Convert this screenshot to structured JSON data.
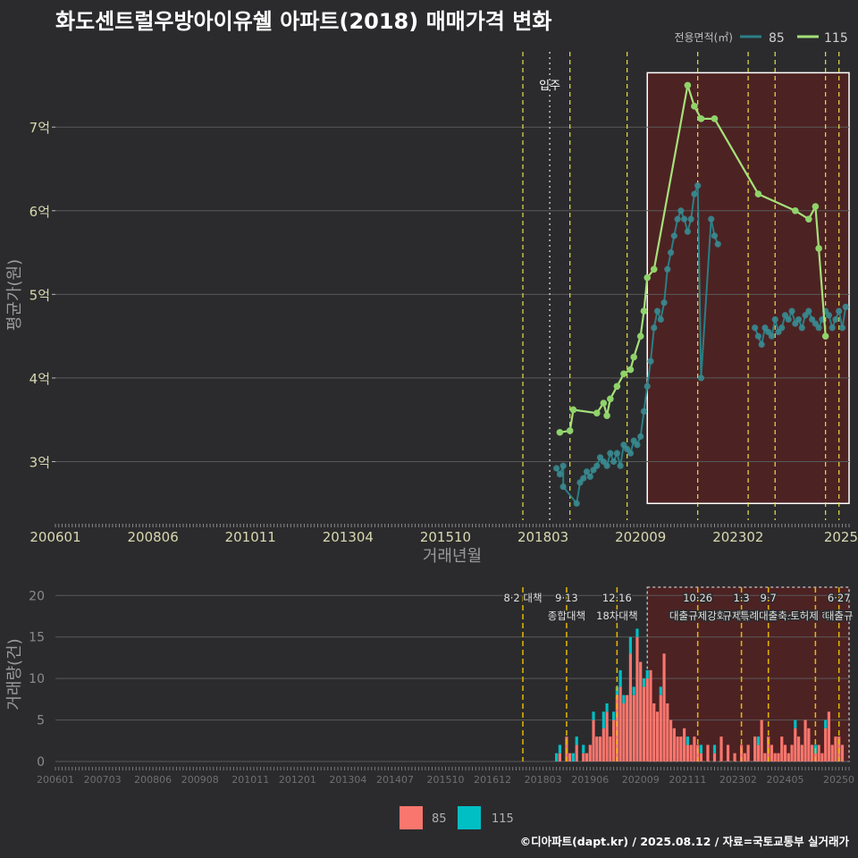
{
  "page": {
    "title": "화도센트럴우방아이유쉘 아파트(2018) 매매가격 변화",
    "footer": "©디아파트(dapt.kr) / 2025.08.12 / 자료=국토교통부 실거래가"
  },
  "colors": {
    "background": "#2b2b2d",
    "grid": "#5a5a5a",
    "series_85_line": "#2a7f86",
    "series_85_point": "#3a8a90",
    "series_115_line": "#a6e07a",
    "series_115_point": "#8fd36a",
    "bar_85": "#f8766d",
    "bar_115": "#00bfc4",
    "policy_line": "#e6b800",
    "highlight_fill": "#5a2020",
    "tick_text": "#d8d8b0"
  },
  "chart_data": [
    {
      "type": "line",
      "title": "평균 매매가격 (전용면적별)",
      "xlabel": "거래년월",
      "ylabel": "평균가(원)",
      "x_unit": "months since 2006-01",
      "xlim": [
        0,
        236
      ],
      "ylim": [
        2.3,
        7.9
      ],
      "y_ticks": [
        3,
        4,
        5,
        6,
        7
      ],
      "y_tick_labels": [
        "3억",
        "4억",
        "5억",
        "6억",
        "7억"
      ],
      "x_ticks": [
        0,
        29,
        58,
        87,
        116,
        145,
        174,
        203,
        232
      ],
      "x_tick_labels": [
        "200601",
        "200806",
        "201011",
        "201304",
        "201510",
        "201803",
        "202009",
        "202302",
        "2025"
      ],
      "legend_title": "전용면적(㎡)",
      "legend_position": "top-right",
      "annotation": {
        "label": "입주",
        "x": 147
      },
      "policy_lines_x": [
        139,
        153,
        170,
        191,
        206,
        214,
        229,
        233
      ],
      "highlight_range": {
        "x": [
          176,
          236
        ],
        "y": [
          2.5,
          7.65
        ]
      },
      "series": [
        {
          "name": "85",
          "points": [
            [
              149,
              2.92
            ],
            [
              150,
              2.85
            ],
            [
              151,
              2.95
            ],
            [
              151,
              2.7
            ],
            [
              155,
              2.5
            ],
            [
              156,
              2.75
            ],
            [
              157,
              2.8
            ],
            [
              158,
              2.88
            ],
            [
              159,
              2.82
            ],
            [
              160,
              2.9
            ],
            [
              161,
              2.95
            ],
            [
              162,
              3.05
            ],
            [
              163,
              3.0
            ],
            [
              164,
              2.95
            ],
            [
              165,
              3.1
            ],
            [
              166,
              3.0
            ],
            [
              167,
              3.1
            ],
            [
              168,
              2.95
            ],
            [
              169,
              3.2
            ],
            [
              170,
              3.15
            ],
            [
              171,
              3.1
            ],
            [
              172,
              3.25
            ],
            [
              173,
              3.2
            ],
            [
              174,
              3.3
            ],
            [
              175,
              3.6
            ],
            [
              176,
              3.9
            ],
            [
              177,
              4.2
            ],
            [
              178,
              4.6
            ],
            [
              179,
              4.8
            ],
            [
              180,
              4.7
            ],
            [
              181,
              4.9
            ],
            [
              182,
              5.3
            ],
            [
              183,
              5.5
            ],
            [
              184,
              5.7
            ],
            [
              185,
              5.9
            ],
            [
              186,
              6.0
            ],
            [
              187,
              5.9
            ],
            [
              188,
              5.75
            ],
            [
              189,
              5.9
            ],
            [
              190,
              6.2
            ],
            [
              191,
              6.3
            ],
            [
              192,
              4.0
            ],
            [
              195,
              5.9
            ],
            [
              196,
              5.7
            ],
            [
              197,
              5.6
            ],
            [
              208,
              4.6
            ],
            [
              209,
              4.5
            ],
            [
              210,
              4.4
            ],
            [
              211,
              4.6
            ],
            [
              212,
              4.55
            ],
            [
              213,
              4.5
            ],
            [
              214,
              4.7
            ],
            [
              215,
              4.55
            ],
            [
              216,
              4.6
            ],
            [
              217,
              4.75
            ],
            [
              218,
              4.7
            ],
            [
              219,
              4.8
            ],
            [
              220,
              4.65
            ],
            [
              221,
              4.7
            ],
            [
              222,
              4.6
            ],
            [
              223,
              4.75
            ],
            [
              224,
              4.8
            ],
            [
              225,
              4.7
            ],
            [
              226,
              4.65
            ],
            [
              227,
              4.6
            ],
            [
              228,
              4.7
            ],
            [
              229,
              4.8
            ],
            [
              230,
              4.75
            ],
            [
              231,
              4.6
            ],
            [
              232,
              4.7
            ],
            [
              233,
              4.8
            ],
            [
              234,
              4.6
            ],
            [
              235,
              4.85
            ]
          ]
        },
        {
          "name": "115",
          "points": [
            [
              150,
              3.35
            ],
            [
              153,
              3.37
            ],
            [
              154,
              3.62
            ],
            [
              161,
              3.58
            ],
            [
              163,
              3.7
            ],
            [
              164,
              3.55
            ],
            [
              165,
              3.75
            ],
            [
              167,
              3.9
            ],
            [
              169,
              4.05
            ],
            [
              171,
              4.1
            ],
            [
              172,
              4.25
            ],
            [
              174,
              4.5
            ],
            [
              175,
              4.8
            ],
            [
              176,
              5.2
            ],
            [
              178,
              5.3
            ],
            [
              188,
              7.5
            ],
            [
              190,
              7.25
            ],
            [
              192,
              7.1
            ],
            [
              196,
              7.1
            ],
            [
              209,
              6.2
            ],
            [
              220,
              6.0
            ],
            [
              224,
              5.9
            ],
            [
              226,
              6.05
            ],
            [
              227,
              5.55
            ],
            [
              229,
              4.5
            ]
          ]
        }
      ]
    },
    {
      "type": "bar",
      "title": "거래량",
      "ylabel": "거래량(건)",
      "x_unit": "months since 2006-01",
      "xlim": [
        0,
        236
      ],
      "ylim": [
        0,
        21
      ],
      "y_ticks": [
        0,
        5,
        10,
        15,
        20
      ],
      "y_tick_labels": [
        "0",
        "5",
        "10",
        "15",
        "20"
      ],
      "x_ticks": [
        0,
        14,
        29,
        43,
        58,
        72,
        87,
        101,
        116,
        130,
        145,
        159,
        174,
        188,
        203,
        217,
        232
      ],
      "x_tick_labels": [
        "200601",
        "200703",
        "200806",
        "200908",
        "201011",
        "201201",
        "201304",
        "201407",
        "201510",
        "201612",
        "201803",
        "201906",
        "202009",
        "202111",
        "202302",
        "202405",
        "20250"
      ],
      "stacked": true,
      "policy_lines": [
        {
          "x": 139,
          "lines": [
            "8·2 대책"
          ]
        },
        {
          "x": 152,
          "lines": [
            "9·13",
            "종합대책"
          ]
        },
        {
          "x": 167,
          "lines": [
            "12·16",
            "18차대책"
          ]
        },
        {
          "x": 191,
          "lines": [
            "10·26",
            "대출규제강화"
          ]
        },
        {
          "x": 204,
          "lines": [
            "1·3",
            "규제완화"
          ]
        },
        {
          "x": 212,
          "lines": [
            "9·7",
            "특례대출축소"
          ]
        },
        {
          "x": 226,
          "lines": [
            "",
            "토허제 해제"
          ]
        },
        {
          "x": 233,
          "lines": [
            "6·27",
            "대출규"
          ]
        }
      ],
      "highlight_range": {
        "x": [
          176,
          236
        ],
        "y": [
          0,
          21
        ]
      },
      "legend_position": "bottom",
      "legend_labels": [
        "85",
        "115"
      ],
      "series": [
        {
          "name": "85",
          "points": [
            [
              150,
              1
            ],
            [
              152,
              3
            ],
            [
              153,
              1
            ],
            [
              155,
              2
            ],
            [
              157,
              1
            ],
            [
              158,
              1
            ],
            [
              159,
              2
            ],
            [
              160,
              5
            ],
            [
              161,
              3
            ],
            [
              162,
              3
            ],
            [
              163,
              4
            ],
            [
              164,
              6
            ],
            [
              165,
              3
            ],
            [
              166,
              5
            ],
            [
              167,
              8
            ],
            [
              168,
              9
            ],
            [
              169,
              7
            ],
            [
              170,
              8
            ],
            [
              171,
              13
            ],
            [
              172,
              8
            ],
            [
              173,
              15
            ],
            [
              174,
              12
            ],
            [
              175,
              9
            ],
            [
              176,
              10
            ],
            [
              177,
              11
            ],
            [
              178,
              7
            ],
            [
              179,
              6
            ],
            [
              180,
              8
            ],
            [
              181,
              13
            ],
            [
              182,
              7
            ],
            [
              183,
              5
            ],
            [
              184,
              4
            ],
            [
              185,
              3
            ],
            [
              186,
              3
            ],
            [
              187,
              4
            ],
            [
              188,
              2
            ],
            [
              189,
              2
            ],
            [
              190,
              3
            ],
            [
              191,
              2
            ],
            [
              192,
              1
            ],
            [
              194,
              2
            ],
            [
              196,
              1
            ],
            [
              198,
              3
            ],
            [
              200,
              2
            ],
            [
              202,
              1
            ],
            [
              204,
              2
            ],
            [
              205,
              1
            ],
            [
              206,
              2
            ],
            [
              208,
              3
            ],
            [
              209,
              2
            ],
            [
              210,
              5
            ],
            [
              211,
              1
            ],
            [
              212,
              3
            ],
            [
              213,
              2
            ],
            [
              214,
              1
            ],
            [
              215,
              1
            ],
            [
              216,
              3
            ],
            [
              217,
              2
            ],
            [
              218,
              1
            ],
            [
              219,
              2
            ],
            [
              220,
              4
            ],
            [
              221,
              3
            ],
            [
              222,
              2
            ],
            [
              223,
              5
            ],
            [
              224,
              4
            ],
            [
              225,
              2
            ],
            [
              226,
              1
            ],
            [
              227,
              2
            ],
            [
              228,
              1
            ],
            [
              229,
              4
            ],
            [
              230,
              6
            ],
            [
              231,
              2
            ],
            [
              232,
              3
            ],
            [
              233,
              3
            ],
            [
              234,
              2
            ]
          ]
        },
        {
          "name": "115",
          "points": [
            [
              149,
              1
            ],
            [
              150,
              1
            ],
            [
              154,
              1
            ],
            [
              155,
              1
            ],
            [
              157,
              1
            ],
            [
              160,
              1
            ],
            [
              163,
              2
            ],
            [
              164,
              1
            ],
            [
              166,
              1
            ],
            [
              167,
              1
            ],
            [
              168,
              2
            ],
            [
              169,
              1
            ],
            [
              171,
              2
            ],
            [
              172,
              1
            ],
            [
              173,
              1
            ],
            [
              175,
              1
            ],
            [
              176,
              1
            ],
            [
              180,
              1
            ],
            [
              188,
              1
            ],
            [
              192,
              1
            ],
            [
              196,
              1
            ],
            [
              209,
              1
            ],
            [
              220,
              1
            ],
            [
              226,
              1
            ],
            [
              229,
              1
            ]
          ]
        }
      ]
    }
  ]
}
